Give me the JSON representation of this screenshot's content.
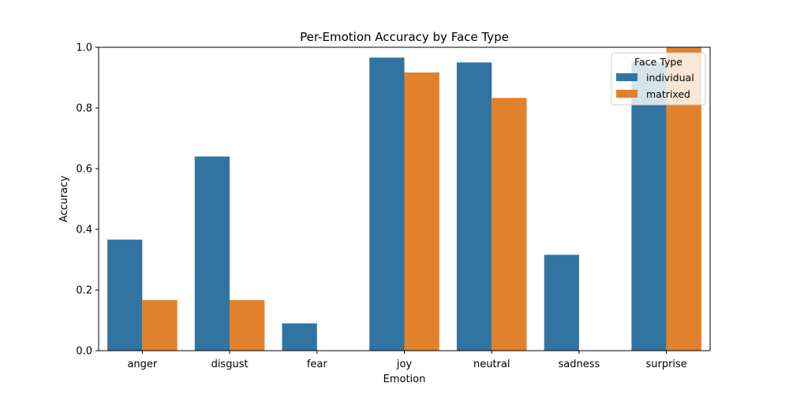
{
  "chart_data": {
    "type": "bar",
    "title": "Per-Emotion Accuracy by Face Type",
    "xlabel": "Emotion",
    "ylabel": "Accuracy",
    "ylim": [
      0,
      1.0
    ],
    "yticks": [
      "0.0",
      "0.2",
      "0.4",
      "0.6",
      "0.8",
      "1.0"
    ],
    "grid": false,
    "legend": {
      "title": "Face Type",
      "position": "top-right"
    },
    "categories": [
      "anger",
      "disgust",
      "fear",
      "joy",
      "neutral",
      "sadness",
      "surprise"
    ],
    "series": [
      {
        "name": "individual",
        "color": "#3274a1",
        "values": [
          0.366,
          0.64,
          0.09,
          0.966,
          0.95,
          0.316,
          0.95
        ]
      },
      {
        "name": "matrixed",
        "color": "#e1812c",
        "values": [
          0.167,
          0.167,
          0.0,
          0.917,
          0.833,
          0.0,
          1.0
        ]
      }
    ]
  }
}
